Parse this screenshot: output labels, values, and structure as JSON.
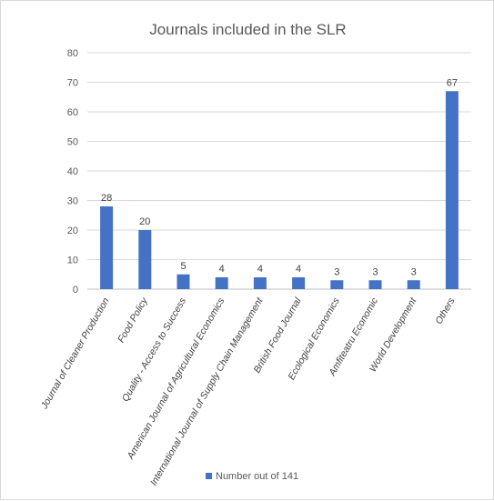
{
  "chart_data": {
    "type": "bar",
    "title": "Journals included in the SLR",
    "categories": [
      "Journal of Cleaner Production",
      "Food Policy",
      "Quality - Access to Success",
      "American Journal of Agricultural Economics",
      "International Journal of Supply Chain Management",
      "British Food Journal",
      "Ecological Economics",
      "Amfiteatru Economic",
      "World Development",
      "Others"
    ],
    "series": [
      {
        "name": "Number out of 141",
        "values": [
          28,
          20,
          5,
          4,
          4,
          4,
          3,
          3,
          3,
          67
        ]
      }
    ],
    "ylim": [
      0,
      80
    ],
    "yticks": [
      0,
      10,
      20,
      30,
      40,
      50,
      60,
      70,
      80
    ],
    "grid": true,
    "legend_position": "bottom",
    "colors": {
      "bar": "#4472C4",
      "grid": "#d9d9d9",
      "axis": "#bfbfbf"
    }
  }
}
